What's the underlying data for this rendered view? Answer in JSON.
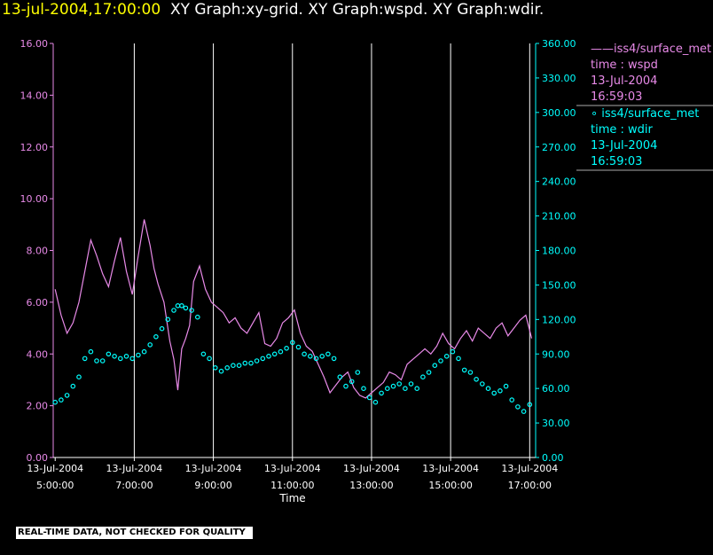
{
  "header": {
    "timestamp": "13-jul-2004,17:00:00",
    "graph_names": "XY Graph:xy-grid.  XY Graph:wspd.  XY Graph:wdir."
  },
  "legend": {
    "wspd": {
      "source": "iss4/surface_met",
      "variable": "time : wspd",
      "date": "13-Jul-2004",
      "time": "16:59:03",
      "color": "#e88ae8"
    },
    "wdir": {
      "source": "iss4/surface_met",
      "variable": "time : wdir",
      "date": "13-Jul-2004",
      "time": "16:59:03",
      "color": "#00ffff"
    }
  },
  "disclaimer": "REAL-TIME DATA, NOT CHECKED FOR QUALITY",
  "chart_data": {
    "type": "line",
    "xlabel": "Time",
    "x_range_hours": [
      4.95,
      17.15
    ],
    "x_ticks": [
      {
        "hour": 5,
        "date": "13-Jul-2004",
        "time": "5:00:00"
      },
      {
        "hour": 7,
        "date": "13-Jul-2004",
        "time": "7:00:00"
      },
      {
        "hour": 9,
        "date": "13-Jul-2004",
        "time": "9:00:00"
      },
      {
        "hour": 11,
        "date": "13-Jul-2004",
        "time": "11:00:00"
      },
      {
        "hour": 13,
        "date": "13-Jul-2004",
        "time": "13:00:00"
      },
      {
        "hour": 15,
        "date": "13-Jul-2004",
        "time": "15:00:00"
      },
      {
        "hour": 17,
        "date": "13-Jul-2004",
        "time": "17:00:00"
      }
    ],
    "y_left": {
      "ylim": [
        0,
        16
      ],
      "ticks": [
        "0.00",
        "2.00",
        "4.00",
        "6.00",
        "8.00",
        "10.00",
        "12.00",
        "14.00",
        "16.00"
      ],
      "color": "#e88ae8"
    },
    "y_right": {
      "ylim": [
        0,
        360
      ],
      "ticks": [
        "0.00",
        "30.00",
        "60.00",
        "90.00",
        "120.00",
        "150.00",
        "180.00",
        "210.00",
        "240.00",
        "270.00",
        "300.00",
        "330.00",
        "360.00"
      ],
      "color": "#00ffff"
    },
    "grid": "vertical",
    "series": [
      {
        "name": "iss4/surface_met time : wspd",
        "axis": "left",
        "style": "line",
        "color": "#e88ae8",
        "x": [
          5.0,
          5.15,
          5.3,
          5.45,
          5.6,
          5.75,
          5.9,
          6.05,
          6.2,
          6.35,
          6.5,
          6.65,
          6.8,
          6.95,
          7.1,
          7.25,
          7.4,
          7.5,
          7.6,
          7.75,
          7.9,
          8.0,
          8.1,
          8.2,
          8.3,
          8.4,
          8.5,
          8.65,
          8.8,
          8.95,
          9.1,
          9.25,
          9.4,
          9.55,
          9.7,
          9.85,
          10.0,
          10.15,
          10.3,
          10.45,
          10.6,
          10.75,
          10.9,
          11.05,
          11.2,
          11.35,
          11.5,
          11.65,
          11.8,
          11.95,
          12.1,
          12.25,
          12.4,
          12.55,
          12.7,
          12.85,
          13.0,
          13.15,
          13.3,
          13.45,
          13.6,
          13.75,
          13.9,
          14.05,
          14.2,
          14.35,
          14.5,
          14.65,
          14.8,
          14.95,
          15.1,
          15.25,
          15.4,
          15.55,
          15.7,
          15.85,
          16.0,
          16.15,
          16.3,
          16.45,
          16.6,
          16.75,
          16.9,
          17.05
        ],
        "y": [
          6.5,
          5.5,
          4.8,
          5.2,
          6.0,
          7.2,
          8.4,
          7.8,
          7.1,
          6.6,
          7.6,
          8.5,
          7.2,
          6.3,
          7.8,
          9.2,
          8.2,
          7.3,
          6.7,
          6.0,
          4.5,
          3.8,
          2.6,
          4.2,
          4.6,
          5.1,
          6.8,
          7.4,
          6.5,
          6.0,
          5.8,
          5.6,
          5.2,
          5.4,
          5.0,
          4.8,
          5.2,
          5.6,
          4.4,
          4.3,
          4.6,
          5.2,
          5.4,
          5.7,
          4.8,
          4.3,
          4.1,
          3.6,
          3.1,
          2.5,
          2.8,
          3.1,
          3.3,
          2.7,
          2.4,
          2.3,
          2.5,
          2.7,
          2.9,
          3.3,
          3.2,
          3.0,
          3.6,
          3.8,
          4.0,
          4.2,
          4.0,
          4.3,
          4.8,
          4.4,
          4.2,
          4.6,
          4.9,
          4.5,
          5.0,
          4.8,
          4.6,
          5.0,
          5.2,
          4.7,
          5.0,
          5.3,
          5.5,
          4.6
        ]
      },
      {
        "name": "iss4/surface_met time : wdir",
        "axis": "right",
        "style": "points",
        "color": "#00ffff",
        "x": [
          5.0,
          5.15,
          5.3,
          5.45,
          5.6,
          5.75,
          5.9,
          6.05,
          6.2,
          6.35,
          6.5,
          6.65,
          6.8,
          6.95,
          7.1,
          7.25,
          7.4,
          7.55,
          7.7,
          7.85,
          8.0,
          8.1,
          8.2,
          8.3,
          8.45,
          8.6,
          8.75,
          8.9,
          9.05,
          9.2,
          9.35,
          9.5,
          9.65,
          9.8,
          9.95,
          10.1,
          10.25,
          10.4,
          10.55,
          10.7,
          10.85,
          11.0,
          11.15,
          11.3,
          11.45,
          11.6,
          11.75,
          11.9,
          12.05,
          12.2,
          12.35,
          12.5,
          12.65,
          12.8,
          12.95,
          13.1,
          13.25,
          13.4,
          13.55,
          13.7,
          13.85,
          14.0,
          14.15,
          14.3,
          14.45,
          14.6,
          14.75,
          14.9,
          15.05,
          15.2,
          15.35,
          15.5,
          15.65,
          15.8,
          15.95,
          16.1,
          16.25,
          16.4,
          16.55,
          16.7,
          16.85,
          17.0
        ],
        "y": [
          48,
          50,
          54,
          62,
          70,
          86,
          92,
          84,
          84,
          90,
          88,
          86,
          88,
          86,
          89,
          92,
          98,
          105,
          112,
          120,
          128,
          132,
          132,
          130,
          128,
          122,
          90,
          86,
          78,
          75,
          78,
          80,
          80,
          82,
          82,
          84,
          86,
          88,
          90,
          92,
          95,
          100,
          96,
          90,
          88,
          86,
          88,
          90,
          86,
          70,
          62,
          66,
          74,
          60,
          52,
          48,
          56,
          60,
          62,
          64,
          60,
          64,
          60,
          70,
          74,
          80,
          84,
          88,
          92,
          86,
          76,
          74,
          68,
          64,
          60,
          56,
          58,
          62,
          50,
          44,
          40,
          46
        ]
      }
    ]
  }
}
